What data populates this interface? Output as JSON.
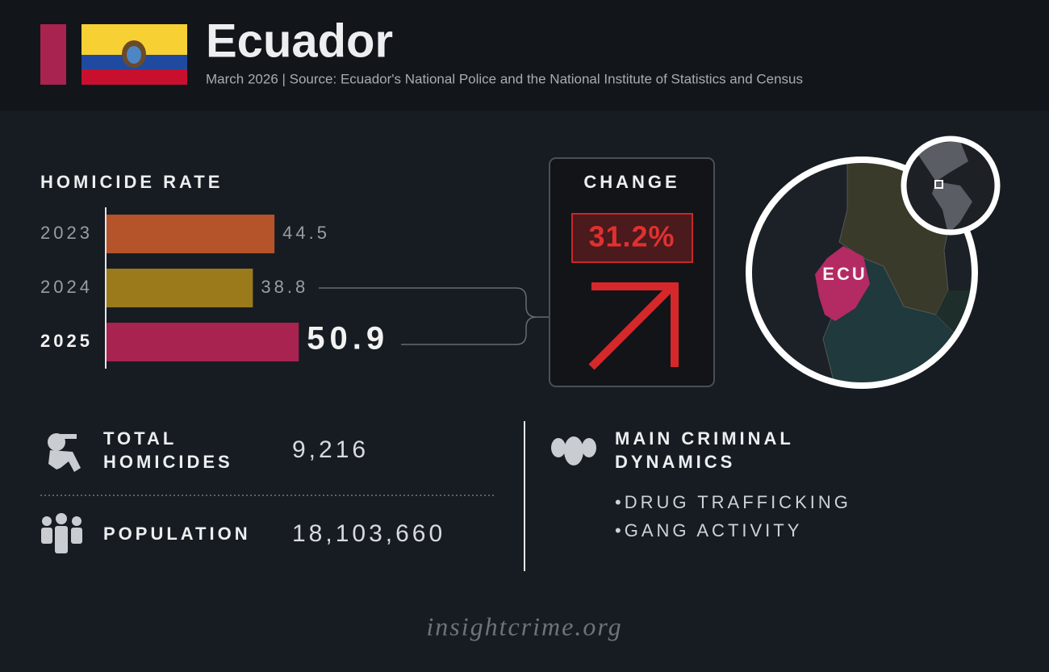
{
  "header": {
    "title": "Ecuador",
    "subtitle": "March 2026 | Source: Ecuador's National Police and the National Institute of Statistics and Census"
  },
  "chart_data": {
    "type": "bar",
    "title": "HOMICIDE RATE",
    "categories": [
      "2023",
      "2024",
      "2025"
    ],
    "values": [
      44.5,
      38.8,
      50.9
    ],
    "colors": [
      "#b5532a",
      "#9a7a1b",
      "#a8234f"
    ]
  },
  "change": {
    "title": "CHANGE",
    "value": "31.2%"
  },
  "map": {
    "label": "ECU"
  },
  "stats": {
    "homicides": {
      "label_lines": [
        "TOTAL",
        "HOMICIDES"
      ],
      "value": "9,216"
    },
    "population": {
      "label": "POPULATION",
      "value": "18,103,660"
    }
  },
  "dynamics": {
    "title_lines": [
      "MAIN CRIMINAL",
      "DYNAMICS"
    ],
    "items": [
      "•DRUG TRAFFICKING",
      "•GANG ACTIVITY"
    ]
  },
  "footer": "insightcrime.org"
}
